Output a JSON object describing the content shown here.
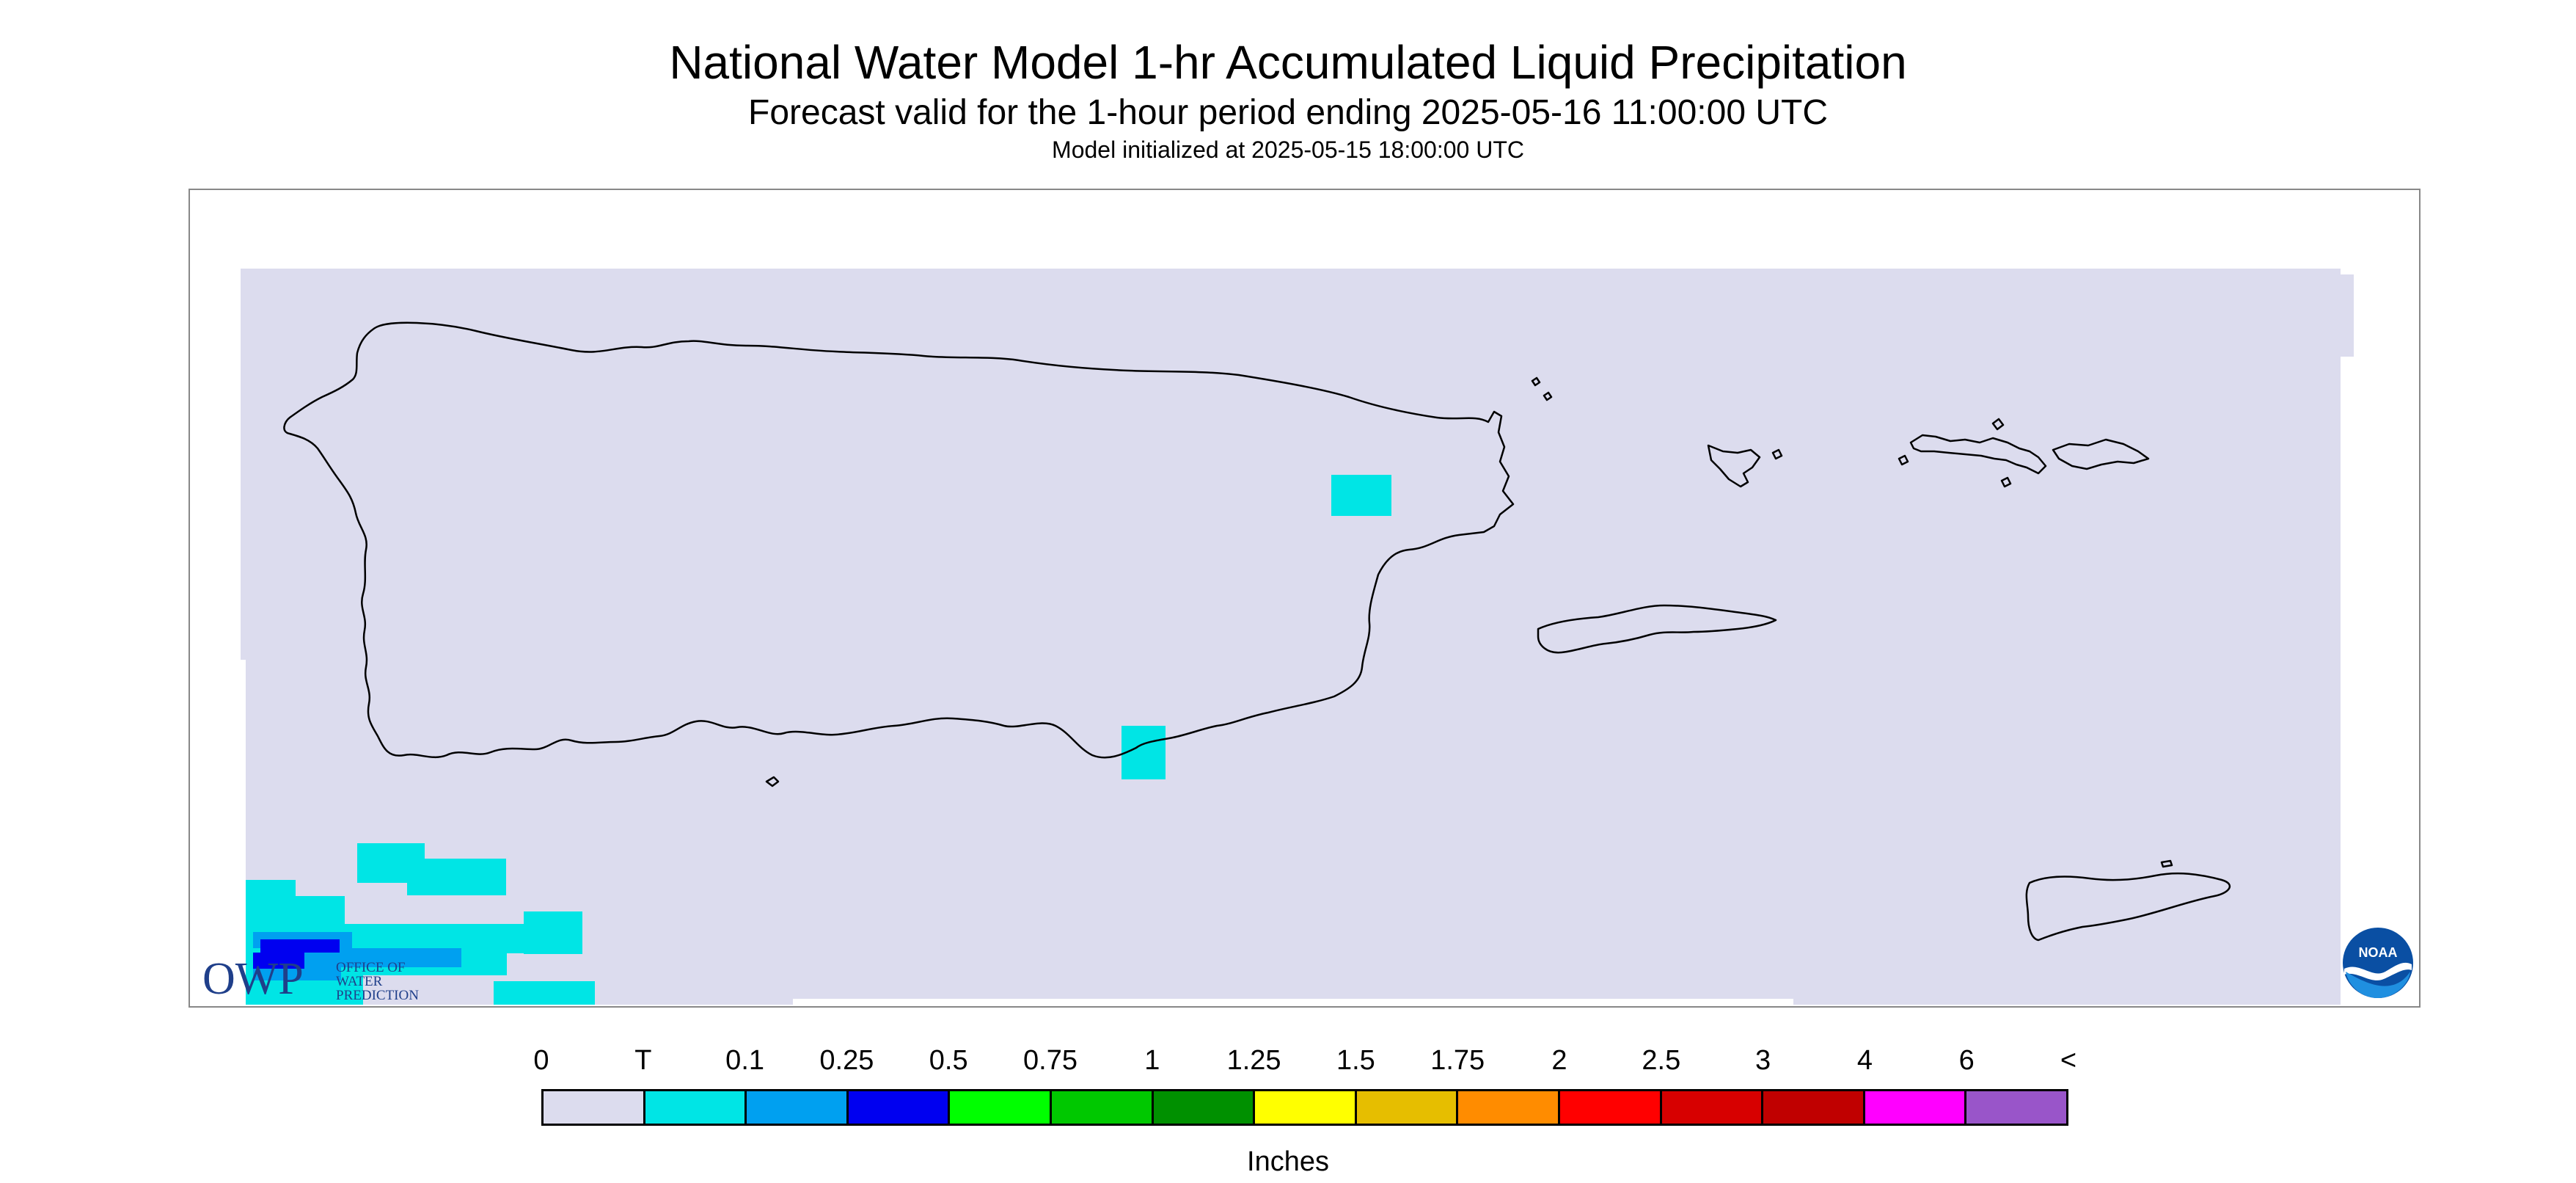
{
  "header": {
    "title": "National Water Model 1-hr Accumulated Liquid Precipitation",
    "subtitle": "Forecast valid for the 1-hour period ending 2025-05-16 11:00:00 UTC",
    "init": "Model initialized at 2025-05-15 18:00:00 UTC"
  },
  "map": {
    "region": "Puerto Rico and Virgin Islands",
    "background_color": "#dcdcee",
    "coastline_color": "#000000",
    "precip_color_trace": "#00e5e5"
  },
  "logos": {
    "owp_text": "OWP",
    "owp_line1": "OFFICE OF",
    "owp_line2": "WATER",
    "owp_line3": "PREDICTION",
    "noaa_text": "NOAA"
  },
  "legend": {
    "ticks": [
      "0",
      "T",
      "0.1",
      "0.25",
      "0.5",
      "0.75",
      "1",
      "1.25",
      "1.5",
      "1.75",
      "2",
      "2.5",
      "3",
      "4",
      "6",
      "<"
    ],
    "colors": [
      "#dcdcee",
      "#00e5e5",
      "#00a0f0",
      "#0000f0",
      "#00ff00",
      "#00c800",
      "#009000",
      "#ffff00",
      "#e6be00",
      "#ff8c00",
      "#ff0000",
      "#d70000",
      "#c00000",
      "#ff00ff",
      "#9955c9"
    ],
    "units": "Inches"
  }
}
